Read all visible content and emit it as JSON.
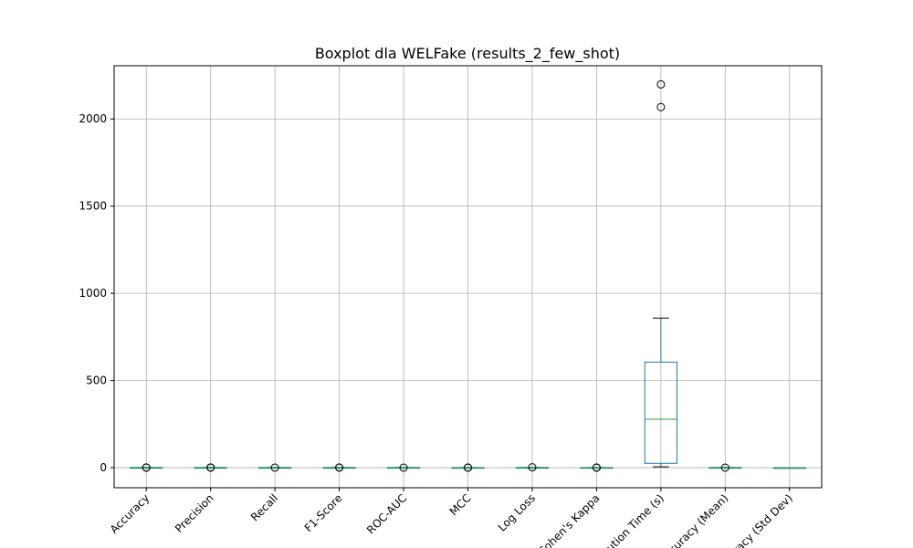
{
  "chart_data": {
    "type": "boxplot",
    "title": "Boxplot dla WELFake (results_2_few_shot)",
    "xlabel": "",
    "ylabel": "",
    "ylim": [
      -115,
      2305
    ],
    "yticks": [
      0,
      500,
      1000,
      1500,
      2000
    ],
    "grid": true,
    "colors": {
      "box": "#1f77b4",
      "median": "#2ca02c",
      "grid": "#b0b0b0",
      "axis": "#000000"
    },
    "categories": [
      "Accuracy",
      "Precision",
      "Recall",
      "F1-Score",
      "ROC-AUC",
      "MCC",
      "Log Loss",
      "Cohen's Kappa",
      "Execution Time (s)",
      "Accuracy (Mean)",
      "Accuracy (Std Dev)"
    ],
    "boxes": [
      {
        "q1": 0.6,
        "median": 0.7,
        "q3": 0.8,
        "whislo": 0.4,
        "whishi": 0.9,
        "fliers": [
          0.1,
          0.95
        ]
      },
      {
        "q1": 0.6,
        "median": 0.7,
        "q3": 0.8,
        "whislo": 0.4,
        "whishi": 0.9,
        "fliers": [
          0.1,
          0.95
        ]
      },
      {
        "q1": 0.6,
        "median": 0.7,
        "q3": 0.8,
        "whislo": 0.4,
        "whishi": 0.9,
        "fliers": [
          0.1
        ]
      },
      {
        "q1": 0.6,
        "median": 0.7,
        "q3": 0.8,
        "whislo": 0.4,
        "whishi": 0.9,
        "fliers": [
          0.1,
          0.95
        ]
      },
      {
        "q1": 0.6,
        "median": 0.7,
        "q3": 0.8,
        "whislo": 0.4,
        "whishi": 0.9,
        "fliers": [
          0.1
        ]
      },
      {
        "q1": 0.2,
        "median": 0.4,
        "q3": 0.6,
        "whislo": 0.0,
        "whishi": 0.8,
        "fliers": [
          -0.3,
          0.9
        ]
      },
      {
        "q1": 0.6,
        "median": 0.7,
        "q3": 0.9,
        "whislo": 0.3,
        "whishi": 1.2,
        "fliers": [
          2.0
        ]
      },
      {
        "q1": 0.2,
        "median": 0.4,
        "q3": 0.6,
        "whislo": 0.0,
        "whishi": 0.8,
        "fliers": [
          -0.3,
          0.9
        ]
      },
      {
        "q1": 25,
        "median": 278,
        "q3": 605,
        "whislo": 5,
        "whishi": 858,
        "fliers": [
          2068,
          2198
        ]
      },
      {
        "q1": 0.6,
        "median": 0.7,
        "q3": 0.8,
        "whislo": 0.4,
        "whishi": 0.9,
        "fliers": [
          0.1
        ]
      },
      {
        "q1": 0.01,
        "median": 0.02,
        "q3": 0.03,
        "whislo": 0.0,
        "whishi": 0.05,
        "fliers": []
      }
    ]
  }
}
